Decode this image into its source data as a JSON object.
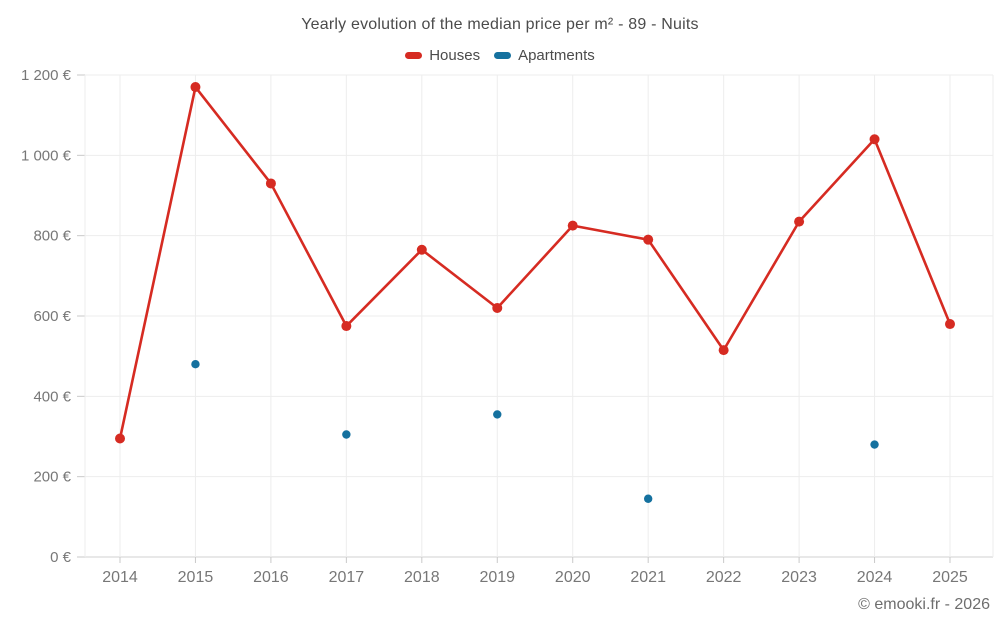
{
  "page": {
    "title": "Yearly evolution of the median price per m² - 89 - Nuits",
    "footer": "© emooki.fr - 2026"
  },
  "legend": {
    "items": [
      {
        "label": "Houses",
        "color": "#d62b22"
      },
      {
        "label": "Apartments",
        "color": "#15719f"
      }
    ]
  },
  "chart_data": {
    "type": "line",
    "title": "Yearly evolution of the median price per m² - 89 - Nuits",
    "x": [
      2014,
      2015,
      2016,
      2017,
      2018,
      2019,
      2020,
      2021,
      2022,
      2023,
      2024,
      2025
    ],
    "series": [
      {
        "name": "Houses",
        "type": "line",
        "color": "#d62b22",
        "values": [
          295,
          1170,
          930,
          575,
          765,
          620,
          825,
          790,
          515,
          835,
          1040,
          580
        ]
      },
      {
        "name": "Apartments",
        "type": "scatter",
        "color": "#15719f",
        "values": [
          null,
          480,
          null,
          305,
          null,
          355,
          null,
          145,
          null,
          null,
          280,
          null
        ]
      }
    ],
    "xlabel": "",
    "ylabel": "",
    "ylim": [
      0,
      1200
    ],
    "ytick_step": 200,
    "ytick_suffix": " €",
    "grid": true,
    "legend_position": "top",
    "colors": {
      "gridline": "#ededed",
      "axis_line": "#d2d2d2",
      "tick_mark": "#c9c9c9",
      "tick_label": "#777777",
      "title_text": "#4b4b4b"
    }
  }
}
